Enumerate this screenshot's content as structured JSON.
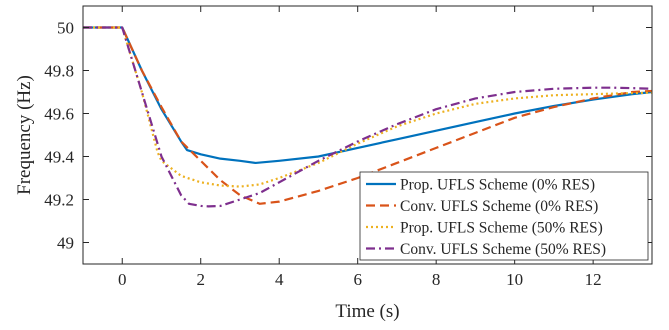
{
  "chart_data": {
    "type": "line",
    "title": "",
    "xlabel": "Time (s)",
    "ylabel": "Frequency (Hz)",
    "xlim": [
      -1,
      13.5
    ],
    "ylim": [
      48.9,
      50.1
    ],
    "x_ticks": [
      0,
      2,
      4,
      6,
      8,
      10,
      12
    ],
    "y_ticks": [
      49,
      49.2,
      49.4,
      49.6,
      49.8,
      50
    ],
    "x_tick_labels": [
      "0",
      "2",
      "4",
      "6",
      "8",
      "10",
      "12"
    ],
    "y_tick_labels": [
      "49",
      "49.2",
      "49.4",
      "49.6",
      "49.8",
      "50"
    ],
    "grid": false,
    "legend_position": "bottom-right",
    "series": [
      {
        "name": "Prop. UFLS Scheme (0% RES)",
        "color": "#0072BD",
        "dash": "solid",
        "x": [
          -1,
          0,
          0.5,
          1,
          1.5,
          1.65,
          2,
          2.5,
          3,
          3.4,
          4,
          5,
          6,
          7,
          8,
          9,
          10,
          11,
          12,
          13,
          13.5
        ],
        "y": [
          50.0,
          50.0,
          49.8,
          49.62,
          49.47,
          49.43,
          49.41,
          49.39,
          49.38,
          49.37,
          49.38,
          49.4,
          49.44,
          49.48,
          49.52,
          49.56,
          49.6,
          49.635,
          49.665,
          49.69,
          49.7
        ]
      },
      {
        "name": "Conv. UFLS Scheme (0% RES)",
        "color": "#D95319",
        "dash": "dashed",
        "x": [
          -1,
          0,
          0.5,
          1,
          1.5,
          2,
          2.5,
          3,
          3.5,
          4,
          5,
          6,
          7,
          8,
          9,
          10,
          11,
          12,
          13,
          13.5
        ],
        "y": [
          50.0,
          50.0,
          49.8,
          49.63,
          49.47,
          49.38,
          49.29,
          49.22,
          49.18,
          49.19,
          49.24,
          49.3,
          49.37,
          49.44,
          49.51,
          49.58,
          49.63,
          49.67,
          49.7,
          49.705
        ]
      },
      {
        "name": "Prop. UFLS Scheme (50% RES)",
        "color": "#EDB120",
        "dash": "dotted",
        "x": [
          -1,
          0,
          0.5,
          0.9,
          1,
          1.5,
          2,
          2.5,
          3,
          3.5,
          4,
          5,
          6,
          7,
          8,
          9,
          10,
          11,
          12,
          13,
          13.5
        ],
        "y": [
          50.0,
          50.0,
          49.7,
          49.42,
          49.38,
          49.31,
          49.28,
          49.265,
          49.26,
          49.27,
          49.3,
          49.37,
          49.46,
          49.54,
          49.6,
          49.645,
          49.67,
          49.685,
          49.69,
          49.695,
          49.697
        ]
      },
      {
        "name": "Conv. UFLS Scheme (50% RES)",
        "color": "#7E2F8E",
        "dash": "dashdot",
        "x": [
          -1,
          0,
          0.5,
          1,
          1.5,
          1.7,
          2,
          2.2,
          2.5,
          3,
          3.5,
          4,
          5,
          6,
          7,
          8,
          9,
          10,
          11,
          12,
          12.5,
          13,
          13.5
        ],
        "y": [
          50.0,
          50.0,
          49.7,
          49.4,
          49.22,
          49.18,
          49.17,
          49.168,
          49.17,
          49.2,
          49.23,
          49.28,
          49.38,
          49.47,
          49.55,
          49.62,
          49.67,
          49.7,
          49.715,
          49.72,
          49.72,
          49.718,
          49.715
        ]
      }
    ]
  }
}
